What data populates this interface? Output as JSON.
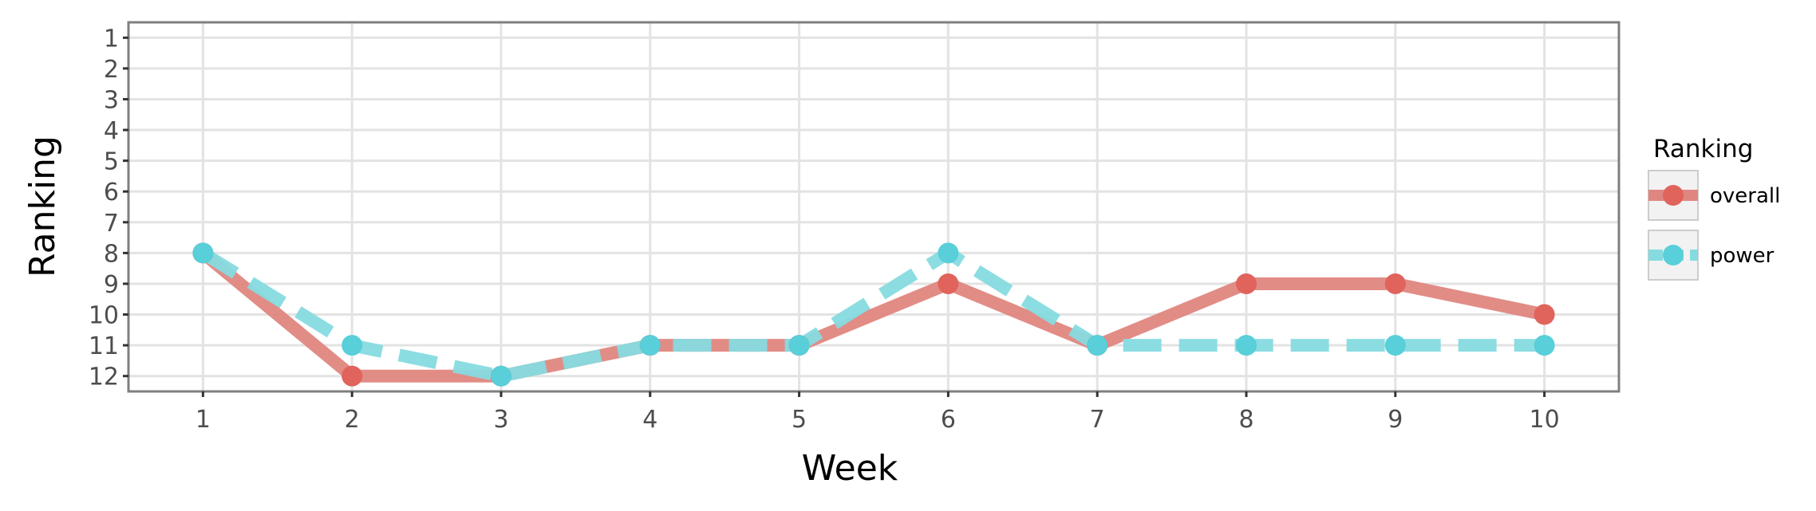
{
  "chart_data": {
    "type": "line",
    "title": "",
    "xlabel": "Week",
    "ylabel": "Ranking",
    "x": [
      1,
      2,
      3,
      4,
      5,
      6,
      7,
      8,
      9,
      10
    ],
    "x_ticks": [
      "1",
      "2",
      "3",
      "4",
      "5",
      "6",
      "7",
      "8",
      "9",
      "10"
    ],
    "y_ticks": [
      "1",
      "2",
      "3",
      "4",
      "5",
      "6",
      "7",
      "8",
      "9",
      "10",
      "11",
      "12"
    ],
    "y_axis": "reversed",
    "xlim": [
      0.5,
      10.5
    ],
    "ylim": [
      0.5,
      12.5
    ],
    "grid": true,
    "legend": {
      "title": "Ranking",
      "position": "right"
    },
    "series": [
      {
        "name": "overall",
        "values": [
          8,
          12,
          12,
          11,
          11,
          9,
          11,
          9,
          9,
          10
        ],
        "line_color": "#e08680",
        "point_color": "#e0635c",
        "line_style": "solid"
      },
      {
        "name": "power",
        "values": [
          8,
          11,
          12,
          11,
          11,
          8,
          11,
          11,
          11,
          11
        ],
        "line_color": "#86dbe0",
        "point_color": "#58cfd9",
        "line_style": "dashed"
      }
    ]
  }
}
